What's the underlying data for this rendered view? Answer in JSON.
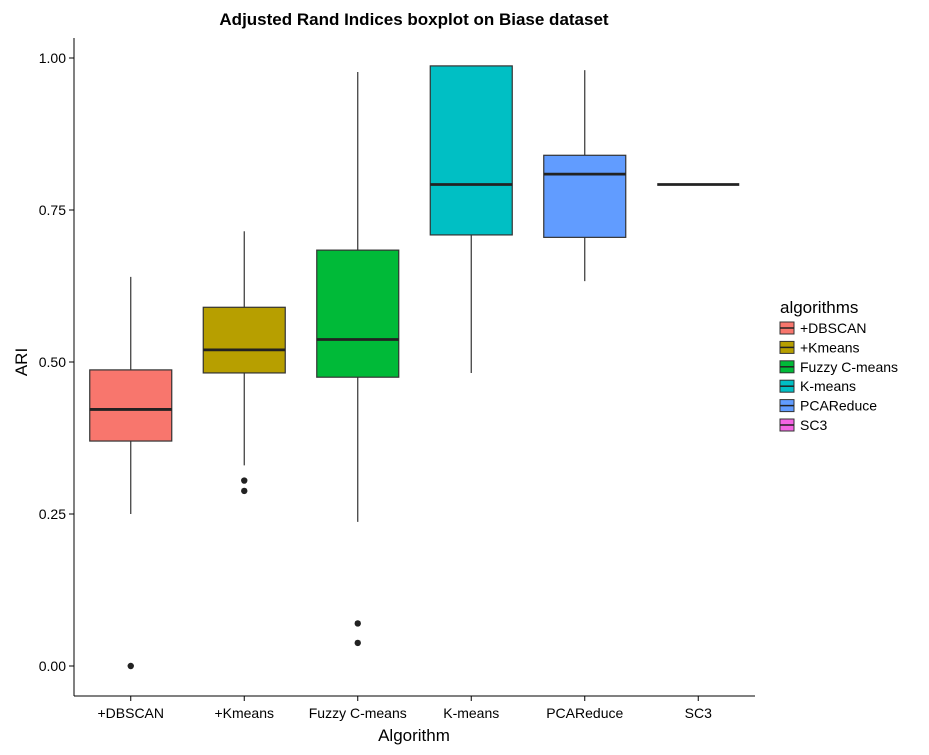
{
  "chart_data": {
    "type": "boxplot",
    "title": "Adjusted Rand Indices boxplot on Biase dataset",
    "xlabel": "Algorithm",
    "ylabel": "ARI",
    "ylim": [
      -0.05,
      1.04
    ],
    "yticks": [
      0.0,
      0.25,
      0.5,
      0.75,
      1.0
    ],
    "ytick_labels": [
      "0.00",
      "0.25",
      "0.50",
      "0.75",
      "1.00"
    ],
    "grid": false,
    "legend": {
      "title": "algorithms",
      "position": "right"
    },
    "categories": [
      "+DBSCAN",
      "+Kmeans",
      "Fuzzy C-means",
      "K-means",
      "PCAReduce",
      "SC3"
    ],
    "series": [
      {
        "name": "+DBSCAN",
        "color": "#F8766D",
        "min": 0.25,
        "q1": 0.37,
        "median": 0.422,
        "q3": 0.487,
        "max": 0.64,
        "outliers": [
          0.0
        ]
      },
      {
        "name": "+Kmeans",
        "color": "#B79F00",
        "min": 0.33,
        "q1": 0.482,
        "median": 0.52,
        "q3": 0.59,
        "max": 0.715,
        "outliers": [
          0.305,
          0.288
        ]
      },
      {
        "name": "Fuzzy C-means",
        "color": "#00BA38",
        "min": 0.237,
        "q1": 0.475,
        "median": 0.537,
        "q3": 0.684,
        "max": 0.977,
        "outliers": [
          0.07,
          0.038
        ]
      },
      {
        "name": "K-means",
        "color": "#00BFC4",
        "min": 0.482,
        "q1": 0.709,
        "median": 0.792,
        "q3": 0.987,
        "max": 0.987,
        "outliers": []
      },
      {
        "name": "PCAReduce",
        "color": "#619CFF",
        "min": 0.633,
        "q1": 0.705,
        "median": 0.809,
        "q3": 0.84,
        "max": 0.98,
        "outliers": []
      },
      {
        "name": "SC3",
        "color": "#F564E3",
        "min": 0.792,
        "q1": 0.792,
        "median": 0.792,
        "q3": 0.792,
        "max": 0.792,
        "outliers": []
      }
    ]
  }
}
